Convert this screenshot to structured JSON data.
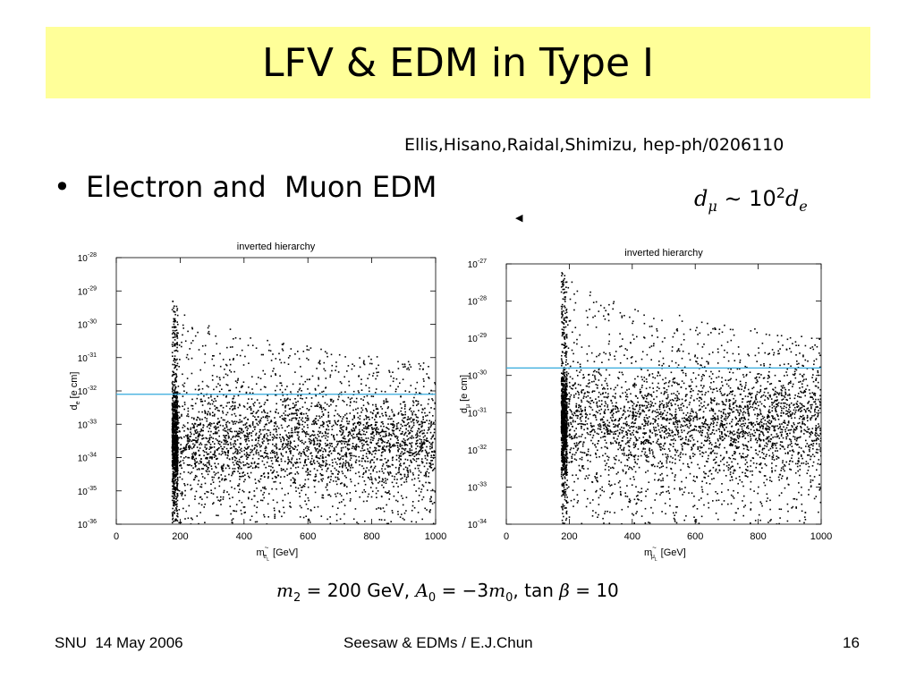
{
  "slide": {
    "title": "LFV & EDM in Type I",
    "reference": "Ellis,Hisano,Raidal,Shimizu, hep-ph/0206110",
    "bullet": "Electron and  Muon EDM",
    "relation": {
      "lhs": "d",
      "lhs_sub": "μ",
      "op": "∼",
      "coef": "10",
      "exp": "2",
      "rhs": "d",
      "rhs_sub": "e"
    },
    "params": {
      "m2_sym": "m",
      "m2_sub": "2",
      "m2_val": "= 200 GeV,",
      "a0_sym": "A",
      "a0_sub": "0",
      "a0_val": "= −3",
      "m0_sym": "m",
      "m0_sub": "0",
      "sep": ",",
      "tan_label": "tan",
      "beta": "β",
      "tan_val": "= 10"
    },
    "footer": {
      "left": "SNU  14 May 2006",
      "center": "Seesaw & EDMs / E.J.Chun",
      "right": "16"
    }
  },
  "chart_data": [
    {
      "type": "scatter",
      "title": "inverted hierarchy",
      "xlabel": "m",
      "xlabel_tilde": "~",
      "xlabel_sub": "e",
      "xlabel_subsub": "L",
      "xlabel_unit": "[GeV]",
      "ylabel": "d",
      "ylabel_sub": "e",
      "ylabel_unit": "[e cm]",
      "xlim": [
        0,
        1000
      ],
      "xticks": [
        "0",
        "200",
        "400",
        "600",
        "800",
        "1000"
      ],
      "y_scale": "log",
      "ylim_exp": [
        -36,
        -28
      ],
      "yticks": [
        -36,
        -35,
        -34,
        -33,
        -32,
        -31,
        -30,
        -29,
        -28
      ],
      "tick_base": "10",
      "bound_line": {
        "y_exp": -32.1,
        "color": "#33aadd"
      },
      "point_region": {
        "x_min": 175,
        "x_max": 1000,
        "y_exp_min": -36,
        "y_exp_max": -29,
        "dense_y_exp_center": -33.5,
        "top_y_exp_at_xmin": -29.2,
        "top_y_exp_at_xmax": -31.2
      },
      "grid": false,
      "legend": "none"
    },
    {
      "type": "scatter",
      "title": "inverted hierarchy",
      "xlabel": "m",
      "xlabel_tilde": "~",
      "xlabel_sub": "μ",
      "xlabel_subsub": "L",
      "xlabel_unit": "[GeV]",
      "ylabel": "d",
      "ylabel_sub": "μ",
      "ylabel_unit": "[e cm]",
      "xlim": [
        0,
        1000
      ],
      "xticks": [
        "0",
        "200",
        "400",
        "600",
        "800",
        "1000"
      ],
      "y_scale": "log",
      "ylim_exp": [
        -34,
        -27
      ],
      "yticks": [
        -34,
        -33,
        -32,
        -31,
        -30,
        -29,
        -28,
        -27
      ],
      "tick_base": "10",
      "bound_line": {
        "y_exp": -29.8,
        "color": "#33aadd"
      },
      "point_region": {
        "x_min": 175,
        "x_max": 1000,
        "y_exp_min": -34,
        "y_exp_max": -27,
        "dense_y_exp_center": -31.3,
        "top_y_exp_at_xmin": -27.1,
        "top_y_exp_at_xmax": -29.0
      },
      "grid": false,
      "legend": "none"
    }
  ]
}
